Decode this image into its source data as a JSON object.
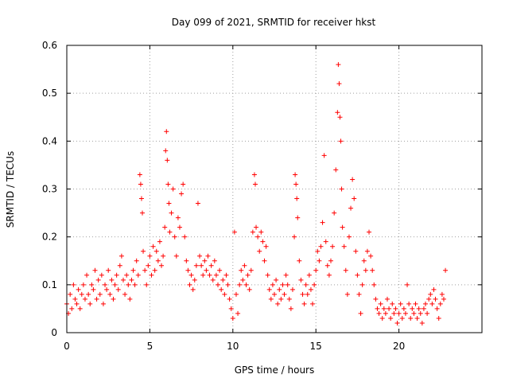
{
  "chart_data": {
    "type": "scatter",
    "title": "Day 099 of 2021, SRMTID for receiver hkst",
    "xlabel": "GPS time / hours",
    "ylabel": "SRMTID / TECUs",
    "xlim": [
      0,
      25
    ],
    "ylim": [
      0,
      0.6
    ],
    "xticks": [
      0,
      5,
      10,
      15,
      20
    ],
    "yticks": [
      0,
      0.1,
      0.2,
      0.3,
      0.4,
      0.5,
      0.6
    ],
    "xtick_labels": [
      "0",
      "5",
      "10",
      "15",
      "20"
    ],
    "ytick_labels": [
      "0",
      "0.1",
      "0.2",
      "0.3",
      "0.4",
      "0.5",
      "0.6"
    ],
    "grid": true,
    "marker": "+",
    "color": "#ff0000",
    "x_range": [
      0,
      22.8
    ],
    "series": [
      {
        "name": "SRMTID",
        "points": [
          [
            0.0,
            0.06
          ],
          [
            0.1,
            0.04
          ],
          [
            0.2,
            0.08
          ],
          [
            0.3,
            0.05
          ],
          [
            0.4,
            0.1
          ],
          [
            0.5,
            0.07
          ],
          [
            0.6,
            0.06
          ],
          [
            0.7,
            0.09
          ],
          [
            0.8,
            0.05
          ],
          [
            0.9,
            0.08
          ],
          [
            1.0,
            0.1
          ],
          [
            1.1,
            0.07
          ],
          [
            1.2,
            0.12
          ],
          [
            1.3,
            0.08
          ],
          [
            1.4,
            0.06
          ],
          [
            1.5,
            0.1
          ],
          [
            1.6,
            0.09
          ],
          [
            1.7,
            0.13
          ],
          [
            1.8,
            0.07
          ],
          [
            1.9,
            0.11
          ],
          [
            2.0,
            0.08
          ],
          [
            2.1,
            0.12
          ],
          [
            2.2,
            0.06
          ],
          [
            2.3,
            0.1
          ],
          [
            2.4,
            0.09
          ],
          [
            2.5,
            0.13
          ],
          [
            2.6,
            0.08
          ],
          [
            2.7,
            0.11
          ],
          [
            2.8,
            0.07
          ],
          [
            2.9,
            0.1
          ],
          [
            3.0,
            0.12
          ],
          [
            3.1,
            0.09
          ],
          [
            3.2,
            0.14
          ],
          [
            3.3,
            0.16
          ],
          [
            3.4,
            0.11
          ],
          [
            3.5,
            0.08
          ],
          [
            3.6,
            0.12
          ],
          [
            3.7,
            0.1
          ],
          [
            3.8,
            0.07
          ],
          [
            3.9,
            0.11
          ],
          [
            4.0,
            0.13
          ],
          [
            4.1,
            0.1
          ],
          [
            4.2,
            0.15
          ],
          [
            4.3,
            0.12
          ],
          [
            4.4,
            0.33
          ],
          [
            4.45,
            0.31
          ],
          [
            4.5,
            0.28
          ],
          [
            4.55,
            0.25
          ],
          [
            4.6,
            0.17
          ],
          [
            4.7,
            0.13
          ],
          [
            4.8,
            0.1
          ],
          [
            4.9,
            0.14
          ],
          [
            5.0,
            0.16
          ],
          [
            5.1,
            0.12
          ],
          [
            5.2,
            0.18
          ],
          [
            5.3,
            0.13
          ],
          [
            5.4,
            0.17
          ],
          [
            5.5,
            0.15
          ],
          [
            5.6,
            0.19
          ],
          [
            5.7,
            0.14
          ],
          [
            5.8,
            0.16
          ],
          [
            5.9,
            0.22
          ],
          [
            5.95,
            0.38
          ],
          [
            6.0,
            0.42
          ],
          [
            6.05,
            0.36
          ],
          [
            6.1,
            0.31
          ],
          [
            6.15,
            0.27
          ],
          [
            6.2,
            0.21
          ],
          [
            6.3,
            0.25
          ],
          [
            6.4,
            0.3
          ],
          [
            6.5,
            0.2
          ],
          [
            6.6,
            0.16
          ],
          [
            6.7,
            0.24
          ],
          [
            6.8,
            0.22
          ],
          [
            6.9,
            0.29
          ],
          [
            7.0,
            0.31
          ],
          [
            7.1,
            0.2
          ],
          [
            7.2,
            0.15
          ],
          [
            7.3,
            0.13
          ],
          [
            7.4,
            0.1
          ],
          [
            7.5,
            0.12
          ],
          [
            7.6,
            0.09
          ],
          [
            7.7,
            0.11
          ],
          [
            7.8,
            0.14
          ],
          [
            7.9,
            0.27
          ],
          [
            8.0,
            0.16
          ],
          [
            8.1,
            0.14
          ],
          [
            8.2,
            0.12
          ],
          [
            8.3,
            0.15
          ],
          [
            8.4,
            0.13
          ],
          [
            8.5,
            0.16
          ],
          [
            8.6,
            0.12
          ],
          [
            8.7,
            0.14
          ],
          [
            8.8,
            0.11
          ],
          [
            8.9,
            0.15
          ],
          [
            9.0,
            0.12
          ],
          [
            9.1,
            0.1
          ],
          [
            9.2,
            0.13
          ],
          [
            9.3,
            0.09
          ],
          [
            9.4,
            0.11
          ],
          [
            9.5,
            0.08
          ],
          [
            9.6,
            0.12
          ],
          [
            9.7,
            0.1
          ],
          [
            9.8,
            0.07
          ],
          [
            9.9,
            0.05
          ],
          [
            10.0,
            0.03
          ],
          [
            10.1,
            0.21
          ],
          [
            10.2,
            0.08
          ],
          [
            10.3,
            0.04
          ],
          [
            10.4,
            0.1
          ],
          [
            10.5,
            0.13
          ],
          [
            10.6,
            0.11
          ],
          [
            10.7,
            0.14
          ],
          [
            10.8,
            0.1
          ],
          [
            10.9,
            0.12
          ],
          [
            11.0,
            0.09
          ],
          [
            11.1,
            0.13
          ],
          [
            11.2,
            0.21
          ],
          [
            11.3,
            0.33
          ],
          [
            11.35,
            0.31
          ],
          [
            11.4,
            0.22
          ],
          [
            11.5,
            0.2
          ],
          [
            11.6,
            0.17
          ],
          [
            11.7,
            0.21
          ],
          [
            11.8,
            0.19
          ],
          [
            11.9,
            0.15
          ],
          [
            12.0,
            0.18
          ],
          [
            12.1,
            0.12
          ],
          [
            12.2,
            0.09
          ],
          [
            12.3,
            0.07
          ],
          [
            12.4,
            0.1
          ],
          [
            12.5,
            0.08
          ],
          [
            12.6,
            0.11
          ],
          [
            12.7,
            0.06
          ],
          [
            12.8,
            0.09
          ],
          [
            12.9,
            0.07
          ],
          [
            13.0,
            0.1
          ],
          [
            13.1,
            0.08
          ],
          [
            13.2,
            0.12
          ],
          [
            13.3,
            0.1
          ],
          [
            13.4,
            0.07
          ],
          [
            13.5,
            0.05
          ],
          [
            13.6,
            0.09
          ],
          [
            13.7,
            0.2
          ],
          [
            13.75,
            0.33
          ],
          [
            13.8,
            0.31
          ],
          [
            13.85,
            0.28
          ],
          [
            13.9,
            0.24
          ],
          [
            14.0,
            0.15
          ],
          [
            14.1,
            0.11
          ],
          [
            14.2,
            0.08
          ],
          [
            14.3,
            0.06
          ],
          [
            14.4,
            0.1
          ],
          [
            14.5,
            0.08
          ],
          [
            14.6,
            0.12
          ],
          [
            14.7,
            0.09
          ],
          [
            14.8,
            0.06
          ],
          [
            14.9,
            0.1
          ],
          [
            15.0,
            0.13
          ],
          [
            15.1,
            0.17
          ],
          [
            15.2,
            0.15
          ],
          [
            15.3,
            0.18
          ],
          [
            15.4,
            0.23
          ],
          [
            15.5,
            0.37
          ],
          [
            15.6,
            0.19
          ],
          [
            15.7,
            0.14
          ],
          [
            15.8,
            0.12
          ],
          [
            15.9,
            0.15
          ],
          [
            16.0,
            0.18
          ],
          [
            16.1,
            0.25
          ],
          [
            16.2,
            0.34
          ],
          [
            16.3,
            0.46
          ],
          [
            16.35,
            0.56
          ],
          [
            16.4,
            0.52
          ],
          [
            16.45,
            0.45
          ],
          [
            16.5,
            0.4
          ],
          [
            16.55,
            0.3
          ],
          [
            16.6,
            0.22
          ],
          [
            16.7,
            0.18
          ],
          [
            16.8,
            0.13
          ],
          [
            16.9,
            0.08
          ],
          [
            17.0,
            0.2
          ],
          [
            17.1,
            0.26
          ],
          [
            17.2,
            0.32
          ],
          [
            17.3,
            0.28
          ],
          [
            17.4,
            0.17
          ],
          [
            17.5,
            0.12
          ],
          [
            17.6,
            0.08
          ],
          [
            17.7,
            0.04
          ],
          [
            17.8,
            0.1
          ],
          [
            17.9,
            0.15
          ],
          [
            18.0,
            0.13
          ],
          [
            18.1,
            0.17
          ],
          [
            18.2,
            0.21
          ],
          [
            18.3,
            0.16
          ],
          [
            18.4,
            0.13
          ],
          [
            18.5,
            0.1
          ],
          [
            18.6,
            0.07
          ],
          [
            18.7,
            0.05
          ],
          [
            18.8,
            0.04
          ],
          [
            18.9,
            0.06
          ],
          [
            19.0,
            0.03
          ],
          [
            19.1,
            0.05
          ],
          [
            19.2,
            0.04
          ],
          [
            19.3,
            0.07
          ],
          [
            19.4,
            0.05
          ],
          [
            19.5,
            0.03
          ],
          [
            19.6,
            0.06
          ],
          [
            19.7,
            0.04
          ],
          [
            19.8,
            0.05
          ],
          [
            19.9,
            0.02
          ],
          [
            20.0,
            0.04
          ],
          [
            20.1,
            0.06
          ],
          [
            20.2,
            0.03
          ],
          [
            20.3,
            0.05
          ],
          [
            20.4,
            0.04
          ],
          [
            20.5,
            0.1
          ],
          [
            20.6,
            0.06
          ],
          [
            20.7,
            0.03
          ],
          [
            20.8,
            0.05
          ],
          [
            20.9,
            0.04
          ],
          [
            21.0,
            0.06
          ],
          [
            21.1,
            0.03
          ],
          [
            21.2,
            0.05
          ],
          [
            21.3,
            0.04
          ],
          [
            21.4,
            0.02
          ],
          [
            21.5,
            0.05
          ],
          [
            21.6,
            0.06
          ],
          [
            21.7,
            0.04
          ],
          [
            21.8,
            0.07
          ],
          [
            21.9,
            0.08
          ],
          [
            22.0,
            0.06
          ],
          [
            22.1,
            0.09
          ],
          [
            22.2,
            0.07
          ],
          [
            22.3,
            0.05
          ],
          [
            22.4,
            0.03
          ],
          [
            22.5,
            0.06
          ],
          [
            22.6,
            0.08
          ],
          [
            22.7,
            0.07
          ],
          [
            22.8,
            0.13
          ]
        ]
      }
    ]
  }
}
